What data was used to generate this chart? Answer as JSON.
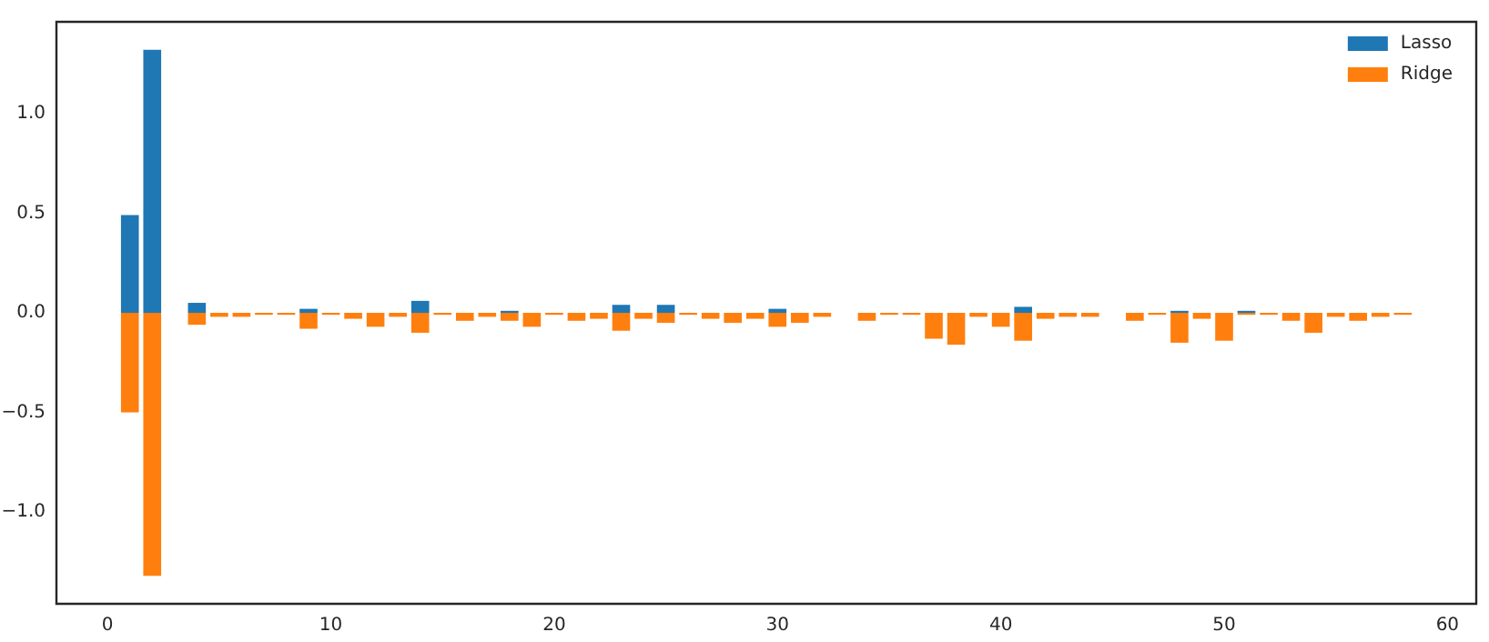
{
  "chart_data": {
    "type": "bar",
    "x": [
      1,
      2,
      3,
      4,
      5,
      6,
      7,
      8,
      9,
      10,
      11,
      12,
      13,
      14,
      15,
      16,
      17,
      18,
      19,
      20,
      21,
      22,
      23,
      24,
      25,
      26,
      27,
      28,
      29,
      30,
      31,
      32,
      33,
      34,
      35,
      36,
      37,
      38,
      39,
      40,
      41,
      42,
      43,
      44,
      45,
      46,
      47,
      48,
      49,
      50,
      51,
      52,
      53,
      54,
      55,
      56,
      57,
      58
    ],
    "series": [
      {
        "name": "Lasso",
        "color": "#1f77b4",
        "values": [
          0.49,
          1.32,
          null,
          0.05,
          0,
          0,
          0,
          0,
          0.02,
          0,
          0,
          0,
          0,
          0.06,
          0,
          0,
          0,
          0.01,
          0,
          0,
          0,
          0,
          0.04,
          0,
          0.04,
          0,
          0,
          0,
          0,
          0.02,
          0,
          0,
          null,
          0,
          0,
          0,
          0,
          0,
          0,
          0,
          0.03,
          0,
          0,
          0,
          null,
          0,
          0,
          0.01,
          0,
          0,
          0.01,
          0,
          0,
          0,
          0,
          0,
          0,
          0
        ]
      },
      {
        "name": "Ridge",
        "color": "#ff7f0e",
        "values": [
          -0.5,
          -1.32,
          null,
          -0.06,
          -0.02,
          -0.02,
          -0.01,
          -0.01,
          -0.08,
          -0.01,
          -0.03,
          -0.07,
          -0.02,
          -0.1,
          -0.01,
          -0.04,
          -0.02,
          -0.04,
          -0.07,
          -0.01,
          -0.04,
          -0.03,
          -0.09,
          -0.03,
          -0.05,
          -0.01,
          -0.03,
          -0.05,
          -0.03,
          -0.07,
          -0.05,
          -0.02,
          null,
          -0.04,
          -0.01,
          -0.01,
          -0.13,
          -0.16,
          -0.02,
          -0.07,
          -0.14,
          -0.03,
          -0.02,
          -0.02,
          null,
          -0.04,
          -0.01,
          -0.15,
          -0.03,
          -0.14,
          -0.01,
          -0.01,
          -0.04,
          -0.1,
          -0.02,
          -0.04,
          -0.02,
          -0.01
        ]
      }
    ],
    "xlim": [
      -2.29,
      61.29
    ],
    "xticks": [
      0,
      10,
      20,
      30,
      40,
      50,
      60
    ],
    "ylim": [
      -1.46,
      1.46
    ],
    "yticks": [
      {
        "value": -1,
        "label": "−1.0"
      },
      {
        "value": -0.5,
        "label": "−0.5"
      },
      {
        "value": 0,
        "label": "0.0"
      },
      {
        "value": 0.5,
        "label": "0.5"
      },
      {
        "value": 1,
        "label": "1.0"
      }
    ],
    "grid": false,
    "legend": "top right"
  }
}
